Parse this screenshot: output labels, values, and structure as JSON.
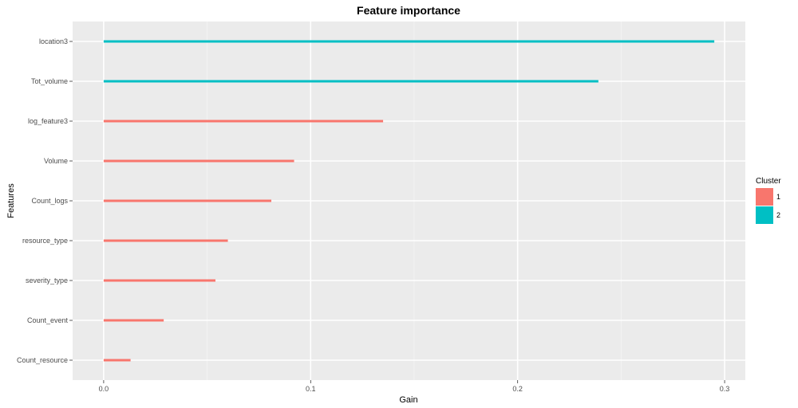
{
  "chart_data": {
    "type": "bar",
    "orientation": "horizontal",
    "title": "Feature importance",
    "xlabel": "Gain",
    "ylabel": "Features",
    "xlim": [
      -0.015,
      0.31
    ],
    "xticks": [
      "0.0",
      "0.1",
      "0.2",
      "0.3"
    ],
    "grid": true,
    "legend": {
      "title": "Cluster",
      "placement": "right",
      "entries": [
        {
          "label": "1",
          "color": "#F8766D"
        },
        {
          "label": "2",
          "color": "#00BFC4"
        }
      ]
    },
    "categories": [
      "location3",
      "Tot_volume",
      "log_feature3",
      "Volume",
      "Count_logs",
      "resource_type",
      "severity_type",
      "Count_event",
      "Count_resource"
    ],
    "values": [
      0.295,
      0.239,
      0.135,
      0.092,
      0.081,
      0.06,
      0.054,
      0.029,
      0.013
    ],
    "cluster": [
      "2",
      "2",
      "1",
      "1",
      "1",
      "1",
      "1",
      "1",
      "1"
    ]
  }
}
